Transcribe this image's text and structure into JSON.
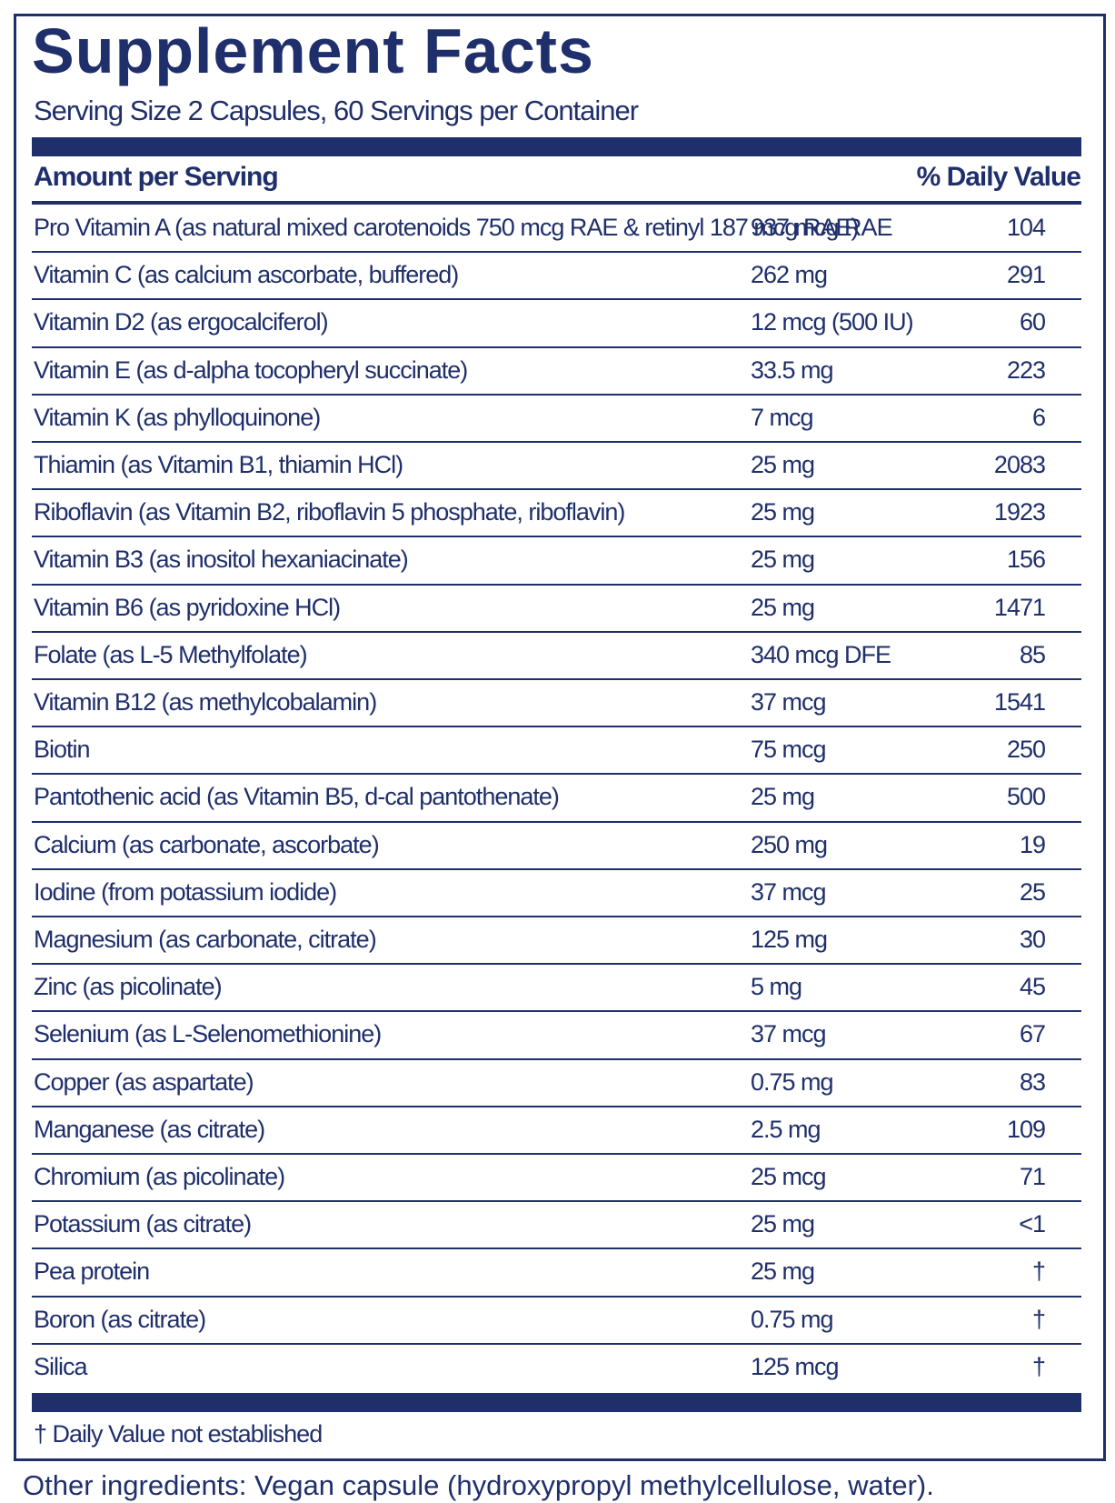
{
  "header": {
    "title": "Supplement Facts",
    "serving": "Serving Size 2 Capsules, 60 Servings per Container"
  },
  "table": {
    "columns": [
      "Amount per Serving",
      "% Daily Value"
    ],
    "rows": [
      [
        "Pro Vitamin A (as natural mixed carotenoids 750 mcg RAE & retinyl 187 mcg RAE)",
        "937 mcg RAE",
        "104"
      ],
      [
        "Vitamin C (as calcium ascorbate, buffered)",
        "262 mg",
        "291"
      ],
      [
        "Vitamin D2 (as ergocalciferol)",
        "12 mcg (500 IU)",
        "60"
      ],
      [
        "Vitamin E (as d-alpha tocopheryl succinate)",
        "33.5 mg",
        "223"
      ],
      [
        "Vitamin K (as phylloquinone)",
        "7 mcg",
        "6"
      ],
      [
        "Thiamin (as Vitamin B1, thiamin HCl)",
        "25 mg",
        "2083"
      ],
      [
        "Riboflavin (as Vitamin B2, riboflavin 5 phosphate, riboflavin)",
        "25 mg",
        "1923"
      ],
      [
        "Vitamin B3 (as inositol hexaniacinate)",
        "25 mg",
        "156"
      ],
      [
        "Vitamin B6 (as pyridoxine HCl)",
        "25 mg",
        "1471"
      ],
      [
        "Folate (as L-5 Methylfolate)",
        "340 mcg DFE",
        "85"
      ],
      [
        "Vitamin B12 (as methylcobalamin)",
        "37 mcg",
        "1541"
      ],
      [
        "Biotin",
        "75 mcg",
        "250"
      ],
      [
        "Pantothenic acid (as Vitamin B5, d-cal pantothenate)",
        "25 mg",
        "500"
      ],
      [
        "Calcium (as carbonate, ascorbate)",
        "250 mg",
        "19"
      ],
      [
        "Iodine (from potassium iodide)",
        "37 mcg",
        "25"
      ],
      [
        "Magnesium (as carbonate, citrate)",
        "125 mg",
        "30"
      ],
      [
        "Zinc (as picolinate)",
        "5 mg",
        "45"
      ],
      [
        "Selenium (as L-Selenomethionine)",
        "37 mcg",
        "67"
      ],
      [
        "Copper (as aspartate)",
        "0.75 mg",
        "83"
      ],
      [
        "Manganese (as citrate)",
        "2.5 mg",
        "109"
      ],
      [
        "Chromium (as picolinate)",
        "25 mcg",
        "71"
      ],
      [
        "Potassium (as citrate)",
        "25 mg",
        "<1"
      ],
      [
        "Pea protein",
        "25 mg",
        "†"
      ],
      [
        "Boron (as citrate)",
        "0.75 mg",
        "†"
      ],
      [
        "Silica",
        "125 mcg",
        "†"
      ]
    ]
  },
  "footnote": "† Daily Value not established",
  "other_ingredients": "Other ingredients: Vegan capsule (hydroxypropyl methylcellulose, water)."
}
